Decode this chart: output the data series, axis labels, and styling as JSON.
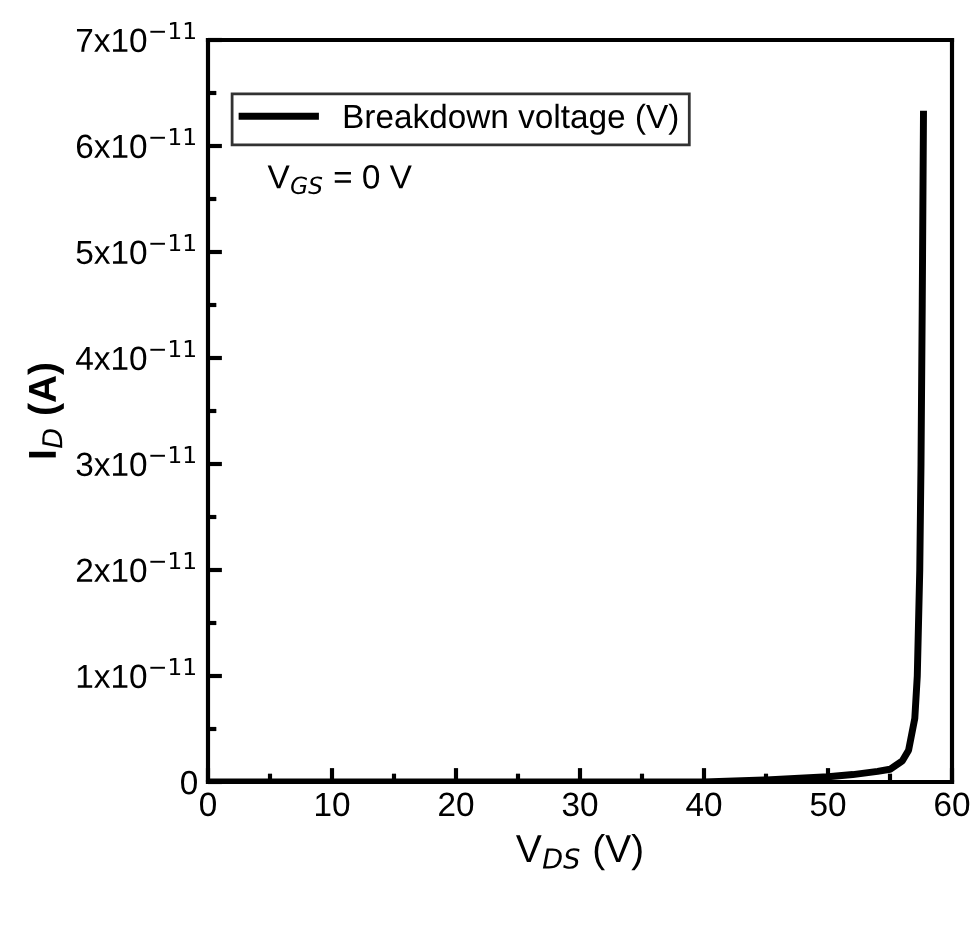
{
  "chart_data": {
    "type": "line",
    "xlabel": "V$_{DS}$ (V)",
    "ylabel": "I$_{D}$ (A)",
    "annotations": [
      "V$_{GS}$ = 0 V"
    ],
    "series": [
      {
        "name": "Breakdown voltage (V)",
        "color": "#000000",
        "x": [
          0,
          10,
          20,
          30,
          40,
          45,
          50,
          52,
          54,
          55,
          56,
          56.5,
          57,
          57.2,
          57.4,
          57.5,
          57.6,
          57.7
        ],
        "values": [
          0,
          0,
          0,
          0,
          0,
          2e-13,
          5e-13,
          7e-13,
          1e-12,
          1.2e-12,
          2e-12,
          3e-12,
          6e-12,
          1e-11,
          2e-11,
          3e-11,
          4.5e-11,
          6.3e-11
        ]
      }
    ],
    "xlim": [
      0,
      60
    ],
    "xticks": [
      0,
      10,
      20,
      30,
      40,
      50,
      60
    ],
    "ylim": [
      0,
      7e-11
    ],
    "yticks": [
      0,
      {
        "value": 1e-11,
        "label": "1x10$^{−11}$"
      },
      {
        "value": 2e-11,
        "label": "2x10$^{−11}$"
      },
      {
        "value": 3e-11,
        "label": "3x10$^{−11}$"
      },
      {
        "value": 4e-11,
        "label": "4x10$^{−11}$"
      },
      {
        "value": 5e-11,
        "label": "5x10$^{−11}$"
      },
      {
        "value": 6e-11,
        "label": "6x10$^{−11}$"
      },
      {
        "value": 7e-11,
        "label": "7x10$^{−11}$"
      }
    ],
    "legend": "top left",
    "grid": false,
    "line_style": "solid",
    "marker": "none"
  }
}
